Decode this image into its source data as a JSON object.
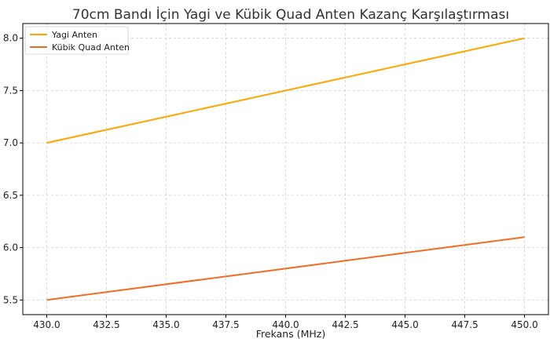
{
  "chart_data": {
    "type": "line",
    "title": "70cm Bandı İçin Yagi ve Kübik Quad Anten Kazanç Karşılaştırması",
    "xlabel": "Frekans (MHz)",
    "ylabel": "",
    "xlim": [
      429,
      451
    ],
    "ylim": [
      5.36,
      8.14
    ],
    "xticks": [
      "430.0",
      "432.5",
      "435.0",
      "437.5",
      "440.0",
      "442.5",
      "445.0",
      "447.5",
      "450.0"
    ],
    "yticks": [
      "5.5",
      "6.0",
      "6.5",
      "7.0",
      "7.5",
      "8.0"
    ],
    "grid": true,
    "legend_position": "top-left",
    "series": [
      {
        "name": "Yagi Anten",
        "color": "#FFA500",
        "x": [
          430,
          450
        ],
        "y": [
          7.0,
          8.0
        ]
      },
      {
        "name": "Kübik Quad Anten",
        "color": "#F26B21",
        "x": [
          430,
          450
        ],
        "y": [
          5.5,
          6.1
        ]
      }
    ]
  }
}
